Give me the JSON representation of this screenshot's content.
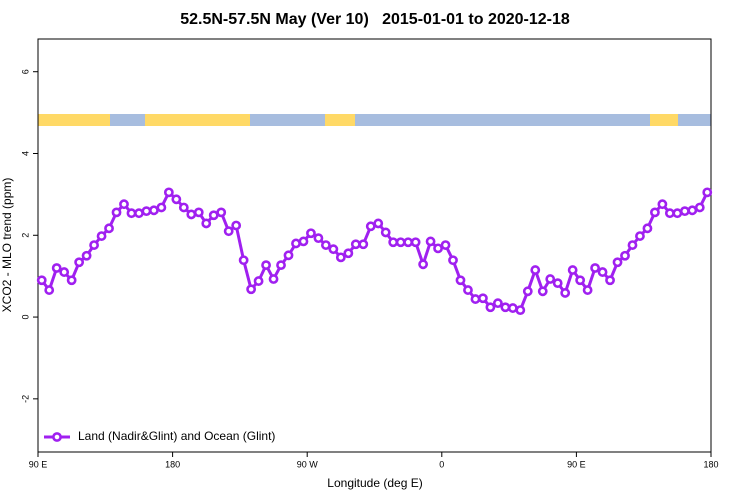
{
  "chart_data": {
    "type": "line",
    "title": "52.5N-57.5N May (Ver 10)   2015-01-01 to 2020-12-18",
    "x_label": "Longitude (deg E)",
    "y_label": "XCO2 - MLO trend (ppm)",
    "xlim": [
      90,
      540
    ],
    "ylim": [
      -3.3,
      6.8
    ],
    "xticks": [
      {
        "value": 90,
        "label": "90 E"
      },
      180,
      {
        "value": 270,
        "label": "90 W"
      },
      {
        "value": 360,
        "label": "0"
      },
      {
        "value": 450,
        "label": "90 E"
      },
      {
        "value": 540,
        "label": "180"
      }
    ],
    "yticks": [
      -2,
      0,
      2,
      4,
      6
    ],
    "grid": false,
    "legend_position": "bottom-left",
    "x": [
      92.5,
      97.5,
      102.5,
      107.5,
      112.5,
      117.5,
      122.5,
      127.5,
      132.5,
      137.5,
      142.5,
      147.5,
      152.5,
      157.5,
      162.5,
      167.5,
      172.5,
      177.5,
      182.5,
      187.5,
      192.5,
      197.5,
      202.5,
      207.5,
      212.5,
      217.5,
      222.5,
      227.5,
      232.5,
      237.5,
      242.5,
      247.5,
      252.5,
      257.5,
      262.5,
      267.5,
      272.5,
      277.5,
      282.5,
      287.5,
      292.5,
      297.5,
      302.5,
      307.5,
      312.5,
      317.5,
      322.5,
      327.5,
      332.5,
      337.5,
      342.5,
      347.5,
      352.5,
      357.5,
      362.5,
      367.5,
      372.5,
      377.5,
      382.5,
      387.5,
      392.5,
      397.5,
      402.5,
      407.5,
      412.5,
      417.5,
      422.5,
      427.5,
      432.5,
      437.5,
      442.5,
      447.5,
      452.5,
      457.5,
      462.5,
      467.5,
      472.5,
      477.5,
      482.5,
      487.5,
      492.5,
      497.5,
      502.5,
      507.5,
      512.5,
      517.5,
      522.5,
      527.5,
      532.5,
      537.5
    ],
    "series": [
      {
        "name": "Land (Nadir&Glint) and Ocean (Glint)",
        "color": "#a020f0",
        "values": [
          0.9,
          0.66,
          1.2,
          1.1,
          0.9,
          1.34,
          1.5,
          1.76,
          1.98,
          2.17,
          2.56,
          2.76,
          2.54,
          2.54,
          2.59,
          2.61,
          2.68,
          3.05,
          2.88,
          2.68,
          2.51,
          2.56,
          2.29,
          2.49,
          2.56,
          2.1,
          2.24,
          1.39,
          0.68,
          0.88,
          1.27,
          0.93,
          1.27,
          1.51,
          1.8,
          1.85,
          2.05,
          1.93,
          1.76,
          1.66,
          1.46,
          1.56,
          1.78,
          1.78,
          2.22,
          2.29,
          2.07,
          1.83,
          1.83,
          1.83,
          1.83,
          1.29,
          1.85,
          1.68,
          1.76,
          1.39,
          0.9,
          0.66,
          0.44,
          0.46,
          0.24,
          0.34,
          0.24,
          0.22,
          0.17,
          0.63,
          1.15,
          0.63,
          0.93,
          0.83,
          0.59,
          1.15,
          0.9,
          0.66,
          1.2,
          1.1,
          0.9,
          1.34,
          1.5,
          1.76,
          1.98,
          2.17,
          2.56,
          2.76,
          2.54,
          2.54,
          2.59,
          2.61,
          2.68,
          3.05
        ]
      }
    ]
  }
}
